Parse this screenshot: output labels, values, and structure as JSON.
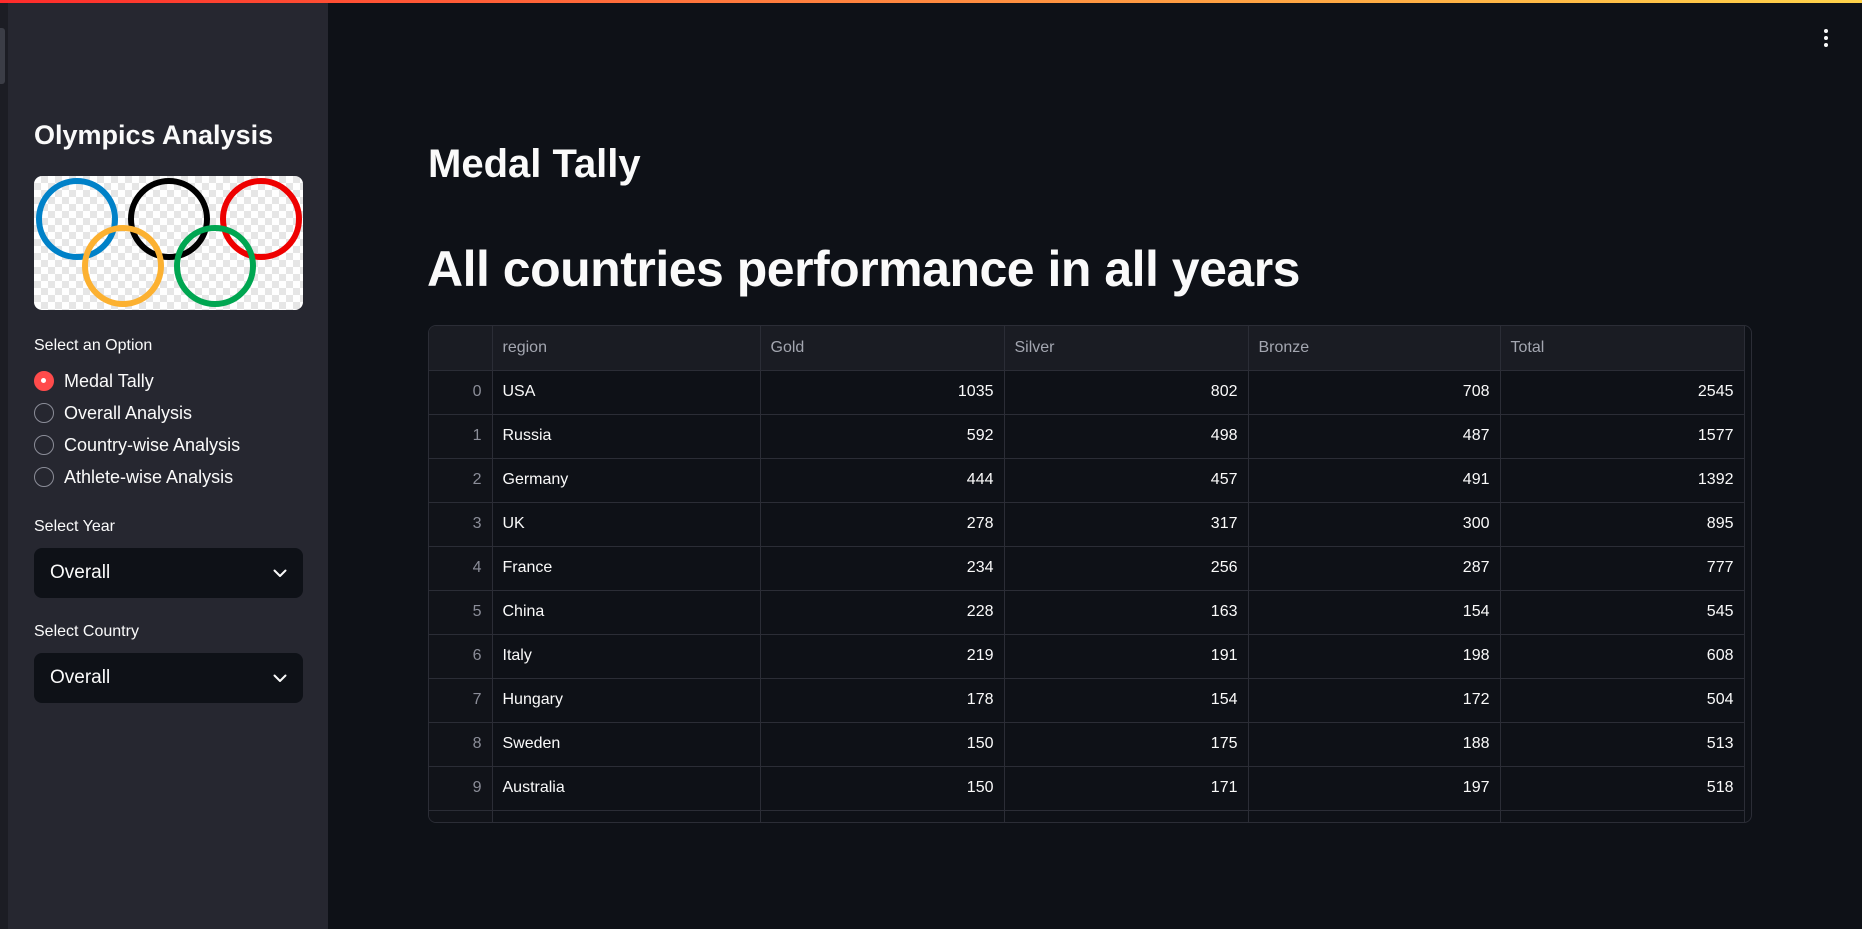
{
  "sidebar": {
    "title": "Olympics Analysis",
    "option_label": "Select an Option",
    "options": [
      {
        "label": "Medal Tally",
        "selected": true
      },
      {
        "label": "Overall Analysis",
        "selected": false
      },
      {
        "label": "Country-wise Analysis",
        "selected": false
      },
      {
        "label": "Athlete-wise Analysis",
        "selected": false
      }
    ],
    "year_label": "Select Year",
    "year_value": "Overall",
    "country_label": "Select Country",
    "country_value": "Overall",
    "ring_colors": [
      "#0081c8",
      "#000000",
      "#ee0000",
      "#fcb131",
      "#00a651"
    ]
  },
  "main": {
    "title": "Medal Tally",
    "subtitle": "All countries performance in all years"
  },
  "table": {
    "columns": [
      "",
      "region",
      "Gold",
      "Silver",
      "Bronze",
      "Total"
    ],
    "rows": [
      {
        "index": "0",
        "region": "USA",
        "gold": "1035",
        "silver": "802",
        "bronze": "708",
        "total": "2545"
      },
      {
        "index": "1",
        "region": "Russia",
        "gold": "592",
        "silver": "498",
        "bronze": "487",
        "total": "1577"
      },
      {
        "index": "2",
        "region": "Germany",
        "gold": "444",
        "silver": "457",
        "bronze": "491",
        "total": "1392"
      },
      {
        "index": "3",
        "region": "UK",
        "gold": "278",
        "silver": "317",
        "bronze": "300",
        "total": "895"
      },
      {
        "index": "4",
        "region": "France",
        "gold": "234",
        "silver": "256",
        "bronze": "287",
        "total": "777"
      },
      {
        "index": "5",
        "region": "China",
        "gold": "228",
        "silver": "163",
        "bronze": "154",
        "total": "545"
      },
      {
        "index": "6",
        "region": "Italy",
        "gold": "219",
        "silver": "191",
        "bronze": "198",
        "total": "608"
      },
      {
        "index": "7",
        "region": "Hungary",
        "gold": "178",
        "silver": "154",
        "bronze": "172",
        "total": "504"
      },
      {
        "index": "8",
        "region": "Sweden",
        "gold": "150",
        "silver": "175",
        "bronze": "188",
        "total": "513"
      },
      {
        "index": "9",
        "region": "Australia",
        "gold": "150",
        "silver": "171",
        "bronze": "197",
        "total": "518"
      }
    ]
  },
  "theme": {
    "accent": "#ff4b4b",
    "background": "#0e1117",
    "sidebar_bg": "#262730"
  }
}
